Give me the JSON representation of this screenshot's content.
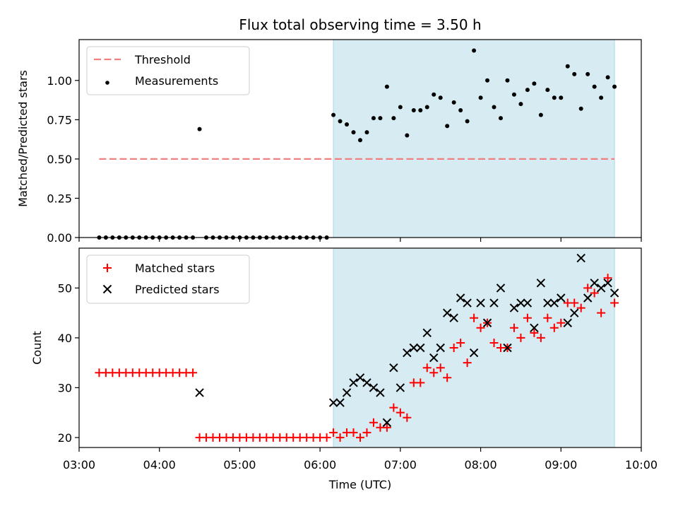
{
  "title": "Flux total observing time = 3.50 h",
  "chart_data": [
    {
      "type": "scatter",
      "ylabel": "Matched/Predicted stars",
      "ylim": [
        0.0,
        1.26
      ],
      "yticks": [
        0.0,
        0.25,
        0.5,
        0.75,
        1.0
      ],
      "ytick_labels": [
        "0.00",
        "0.25",
        "0.50",
        "0.75",
        "1.00"
      ],
      "xlim": [
        "03:00",
        "10:00"
      ],
      "highlight_span": {
        "from": "06:10",
        "to": "09:40",
        "color": "#add8e6"
      },
      "legend_position": "upper-left",
      "threshold": {
        "name": "Threshold",
        "value": 0.5,
        "from": "03:15",
        "to": "09:40",
        "color": "#f08080"
      },
      "series": [
        {
          "name": "Measurements",
          "color": "#000000",
          "marker": "dot",
          "x": [
            "03:15",
            "03:20",
            "03:25",
            "03:30",
            "03:35",
            "03:40",
            "03:45",
            "03:50",
            "03:55",
            "04:00",
            "04:05",
            "04:10",
            "04:15",
            "04:20",
            "04:25",
            "04:30",
            "04:35",
            "04:40",
            "04:45",
            "04:50",
            "04:55",
            "05:00",
            "05:05",
            "05:10",
            "05:15",
            "05:20",
            "05:25",
            "05:30",
            "05:35",
            "05:40",
            "05:45",
            "05:50",
            "05:55",
            "06:00",
            "06:05",
            "06:10",
            "06:15",
            "06:20",
            "06:25",
            "06:30",
            "06:35",
            "06:40",
            "06:45",
            "06:50",
            "06:55",
            "07:00",
            "07:05",
            "07:10",
            "07:15",
            "07:20",
            "07:25",
            "07:30",
            "07:35",
            "07:40",
            "07:45",
            "07:50",
            "07:55",
            "08:00",
            "08:05",
            "08:10",
            "08:15",
            "08:20",
            "08:25",
            "08:30",
            "08:35",
            "08:40",
            "08:45",
            "08:50",
            "08:55",
            "09:00",
            "09:05",
            "09:10",
            "09:15",
            "09:20",
            "09:25",
            "09:30",
            "09:35",
            "09:40"
          ],
          "values": [
            0,
            0,
            0,
            0,
            0,
            0,
            0,
            0,
            0,
            0,
            0,
            0,
            0,
            0,
            0,
            0.69,
            0,
            0,
            0,
            0,
            0,
            0,
            0,
            0,
            0,
            0,
            0,
            0,
            0,
            0,
            0,
            0,
            0,
            0,
            0,
            0.78,
            0.74,
            0.72,
            0.67,
            0.62,
            0.67,
            0.76,
            0.76,
            0.96,
            0.76,
            0.83,
            0.65,
            0.81,
            0.81,
            0.83,
            0.91,
            0.89,
            0.71,
            0.86,
            0.81,
            0.74,
            1.19,
            0.89,
            1.0,
            0.83,
            0.76,
            1.0,
            0.91,
            0.85,
            0.94,
            0.98,
            0.78,
            0.94,
            0.89,
            0.89,
            1.09,
            1.04,
            0.82,
            1.04,
            0.96,
            0.89,
            1.02,
            0.96
          ]
        }
      ]
    },
    {
      "type": "scatter",
      "xlabel": "Time (UTC)",
      "ylabel": "Count",
      "ylim": [
        18,
        58
      ],
      "yticks": [
        20,
        30,
        40,
        50
      ],
      "ytick_labels": [
        "20",
        "30",
        "40",
        "50"
      ],
      "xlim": [
        "03:00",
        "10:00"
      ],
      "xticks": [
        "03:00",
        "04:00",
        "05:00",
        "06:00",
        "07:00",
        "08:00",
        "09:00",
        "10:00"
      ],
      "highlight_span": {
        "from": "06:10",
        "to": "09:40",
        "color": "#add8e6"
      },
      "legend_position": "upper-left",
      "series": [
        {
          "name": "Matched stars",
          "color": "#ff0000",
          "marker": "plus",
          "x": [
            "03:15",
            "03:20",
            "03:25",
            "03:30",
            "03:35",
            "03:40",
            "03:45",
            "03:50",
            "03:55",
            "04:00",
            "04:05",
            "04:10",
            "04:15",
            "04:20",
            "04:25",
            "04:30",
            "04:35",
            "04:40",
            "04:45",
            "04:50",
            "04:55",
            "05:00",
            "05:05",
            "05:10",
            "05:15",
            "05:20",
            "05:25",
            "05:30",
            "05:35",
            "05:40",
            "05:45",
            "05:50",
            "05:55",
            "06:00",
            "06:05",
            "06:10",
            "06:15",
            "06:20",
            "06:25",
            "06:30",
            "06:35",
            "06:40",
            "06:45",
            "06:50",
            "06:55",
            "07:00",
            "07:05",
            "07:10",
            "07:15",
            "07:20",
            "07:25",
            "07:30",
            "07:35",
            "07:40",
            "07:45",
            "07:50",
            "07:55",
            "08:00",
            "08:05",
            "08:10",
            "08:15",
            "08:20",
            "08:25",
            "08:30",
            "08:35",
            "08:40",
            "08:45",
            "08:50",
            "08:55",
            "09:00",
            "09:05",
            "09:10",
            "09:15",
            "09:20",
            "09:25",
            "09:30",
            "09:35",
            "09:40"
          ],
          "values": [
            33,
            33,
            33,
            33,
            33,
            33,
            33,
            33,
            33,
            33,
            33,
            33,
            33,
            33,
            33,
            20,
            20,
            20,
            20,
            20,
            20,
            20,
            20,
            20,
            20,
            20,
            20,
            20,
            20,
            20,
            20,
            20,
            20,
            20,
            20,
            21,
            20,
            21,
            21,
            20,
            21,
            23,
            22,
            22,
            26,
            25,
            24,
            31,
            31,
            34,
            33,
            34,
            32,
            38,
            39,
            35,
            44,
            42,
            43,
            39,
            38,
            38,
            42,
            40,
            44,
            41,
            40,
            44,
            42,
            43,
            47,
            47,
            46,
            50,
            49,
            45,
            52,
            47
          ]
        },
        {
          "name": "Predicted stars",
          "color": "#000000",
          "marker": "x",
          "x": [
            "04:30",
            "06:10",
            "06:15",
            "06:20",
            "06:25",
            "06:30",
            "06:35",
            "06:40",
            "06:45",
            "06:50",
            "06:55",
            "07:00",
            "07:05",
            "07:10",
            "07:15",
            "07:20",
            "07:25",
            "07:30",
            "07:35",
            "07:40",
            "07:45",
            "07:50",
            "07:55",
            "08:00",
            "08:05",
            "08:10",
            "08:15",
            "08:20",
            "08:25",
            "08:30",
            "08:35",
            "08:40",
            "08:45",
            "08:50",
            "08:55",
            "09:00",
            "09:05",
            "09:10",
            "09:15",
            "09:20",
            "09:25",
            "09:30",
            "09:35",
            "09:40"
          ],
          "values": [
            29,
            27,
            27,
            29,
            31,
            32,
            31,
            30,
            29,
            23,
            34,
            30,
            37,
            38,
            38,
            41,
            36,
            38,
            45,
            44,
            48,
            47,
            37,
            47,
            43,
            47,
            50,
            38,
            46,
            47,
            47,
            42,
            51,
            47,
            47,
            48,
            43,
            45,
            56,
            48,
            51,
            50,
            51,
            49
          ]
        }
      ]
    }
  ]
}
